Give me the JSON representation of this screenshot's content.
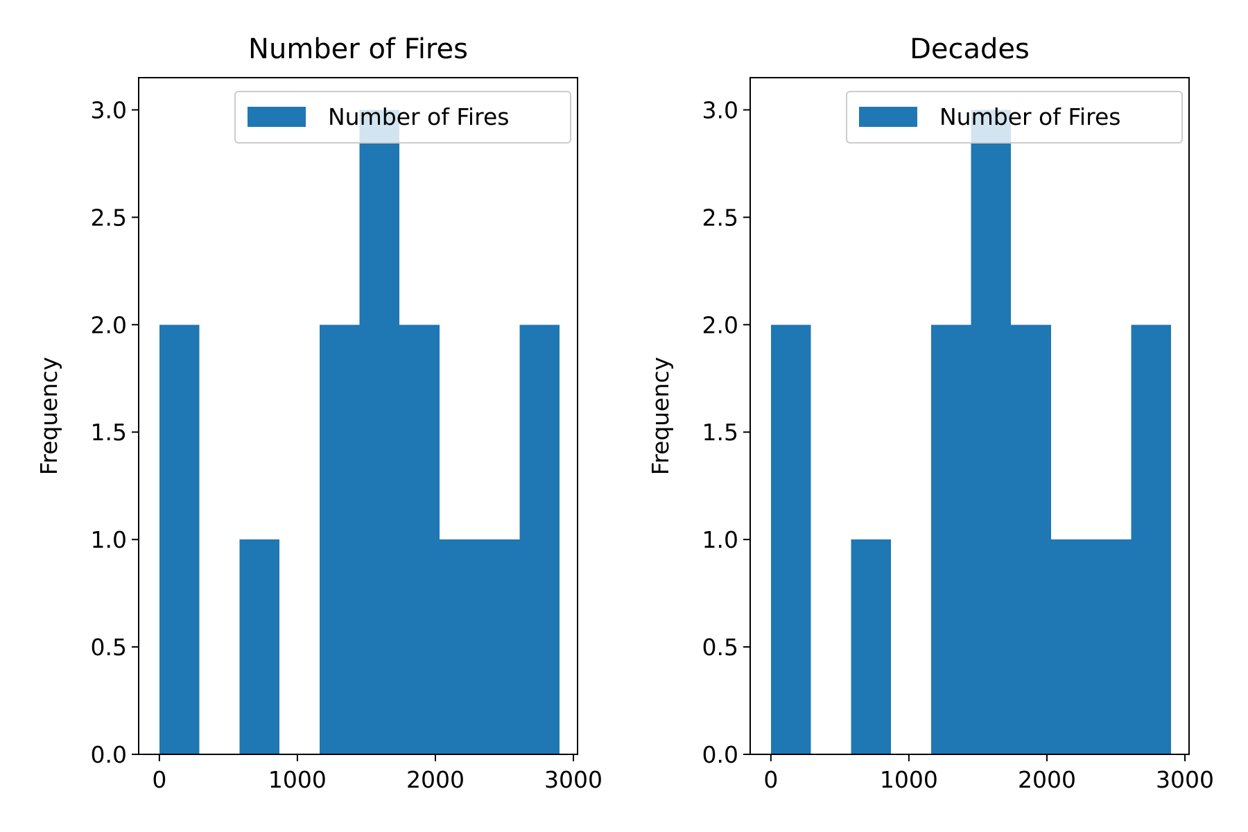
{
  "colors": {
    "bar": "#1f77b4",
    "axis": "#000000",
    "background": "#ffffff"
  },
  "chart_data": [
    {
      "type": "bar",
      "title": "Number of Fires",
      "xlabel": "",
      "ylabel": "Frequency",
      "xlim": [
        -150,
        3030
      ],
      "ylim": [
        0,
        3.15
      ],
      "xticks": [
        "0",
        "1000",
        "2000",
        "3000"
      ],
      "yticks": [
        "0.0",
        "0.5",
        "1.0",
        "1.5",
        "2.0",
        "2.5",
        "3.0"
      ],
      "legend": {
        "position": "upper right",
        "entries": [
          "Number of Fires"
        ]
      },
      "grid": false,
      "series": [
        {
          "name": "Number of Fires",
          "bin_edges": [
            0,
            290,
            580,
            870,
            1160,
            1450,
            1740,
            2030,
            2320,
            2610,
            2900
          ],
          "values": [
            2,
            0,
            1,
            0,
            2,
            3,
            2,
            1,
            1,
            2
          ]
        }
      ]
    },
    {
      "type": "bar",
      "title": "Decades",
      "xlabel": "",
      "ylabel": "Frequency",
      "xlim": [
        -150,
        3030
      ],
      "ylim": [
        0,
        3.15
      ],
      "xticks": [
        "0",
        "1000",
        "2000",
        "3000"
      ],
      "yticks": [
        "0.0",
        "0.5",
        "1.0",
        "1.5",
        "2.0",
        "2.5",
        "3.0"
      ],
      "legend": {
        "position": "upper right",
        "entries": [
          "Number of Fires"
        ]
      },
      "grid": false,
      "series": [
        {
          "name": "Number of Fires",
          "bin_edges": [
            0,
            290,
            580,
            870,
            1160,
            1450,
            1740,
            2030,
            2320,
            2610,
            2900
          ],
          "values": [
            2,
            0,
            1,
            0,
            2,
            3,
            2,
            1,
            1,
            2
          ]
        }
      ]
    }
  ]
}
